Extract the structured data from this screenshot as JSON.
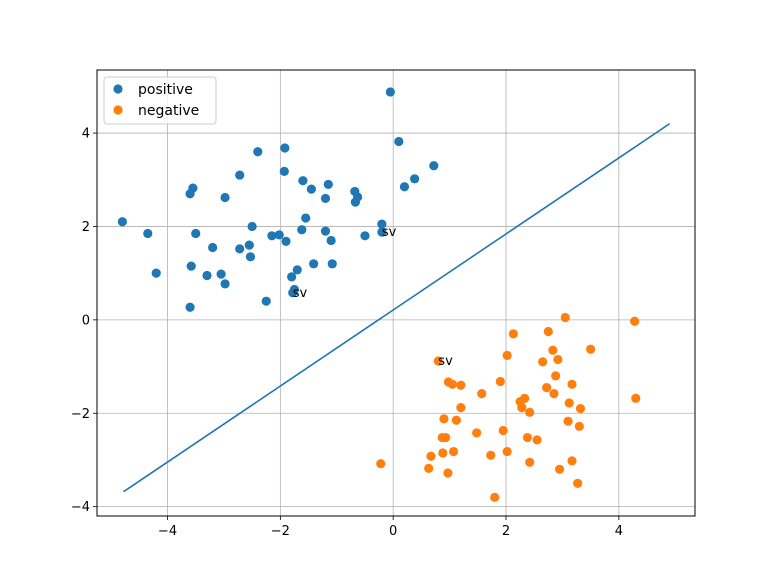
{
  "chart_data": {
    "type": "scatter",
    "title": "",
    "xlabel": "",
    "ylabel": "",
    "xlim": [
      -5.25,
      5.35
    ],
    "ylim": [
      -4.2,
      5.35
    ],
    "xticks": [
      -4,
      -2,
      0,
      2,
      4
    ],
    "yticks": [
      -4,
      -2,
      0,
      2,
      4
    ],
    "grid": true,
    "legend": {
      "position": "top-left"
    },
    "series": [
      {
        "name": "positive",
        "color": "#1f77b4",
        "points": [
          [
            -4.8,
            2.1
          ],
          [
            -4.35,
            1.85
          ],
          [
            -4.2,
            1.0
          ],
          [
            -3.6,
            2.7
          ],
          [
            -3.55,
            2.82
          ],
          [
            -3.5,
            1.85
          ],
          [
            -3.58,
            1.15
          ],
          [
            -3.6,
            0.27
          ],
          [
            -3.3,
            0.95
          ],
          [
            -3.2,
            1.55
          ],
          [
            -3.05,
            0.98
          ],
          [
            -2.98,
            2.62
          ],
          [
            -2.98,
            0.77
          ],
          [
            -2.72,
            3.1
          ],
          [
            -2.72,
            1.52
          ],
          [
            -2.55,
            1.6
          ],
          [
            -2.5,
            2.0
          ],
          [
            -2.53,
            1.35
          ],
          [
            -2.4,
            3.6
          ],
          [
            -2.25,
            0.4
          ],
          [
            -2.15,
            1.8
          ],
          [
            -2.02,
            1.82
          ],
          [
            -1.92,
            3.68
          ],
          [
            -1.93,
            3.18
          ],
          [
            -1.9,
            1.68
          ],
          [
            -1.8,
            0.92
          ],
          [
            -1.78,
            0.58
          ],
          [
            -1.75,
            0.65
          ],
          [
            -1.7,
            1.07
          ],
          [
            -1.62,
            1.93
          ],
          [
            -1.6,
            2.98
          ],
          [
            -1.55,
            2.18
          ],
          [
            -1.45,
            2.8
          ],
          [
            -1.41,
            1.2
          ],
          [
            -1.2,
            2.6
          ],
          [
            -1.2,
            1.9
          ],
          [
            -1.15,
            2.9
          ],
          [
            -1.1,
            1.7
          ],
          [
            -1.08,
            1.2
          ],
          [
            -0.68,
            2.75
          ],
          [
            -0.67,
            2.52
          ],
          [
            -0.63,
            2.63
          ],
          [
            -0.5,
            1.8
          ],
          [
            -0.2,
            2.05
          ],
          [
            -0.2,
            1.88
          ],
          [
            -0.05,
            4.88
          ],
          [
            0.1,
            3.82
          ],
          [
            0.2,
            2.85
          ],
          [
            0.38,
            3.02
          ],
          [
            0.72,
            3.3
          ]
        ]
      },
      {
        "name": "negative",
        "color": "#ff7f0e",
        "points": [
          [
            -0.22,
            -3.08
          ],
          [
            0.63,
            -3.18
          ],
          [
            0.67,
            -2.92
          ],
          [
            0.8,
            -0.88
          ],
          [
            0.87,
            -2.52
          ],
          [
            0.88,
            -2.85
          ],
          [
            0.9,
            -2.12
          ],
          [
            0.93,
            -2.52
          ],
          [
            0.97,
            -3.28
          ],
          [
            0.98,
            -1.33
          ],
          [
            1.05,
            -1.38
          ],
          [
            1.07,
            -2.82
          ],
          [
            1.12,
            -2.15
          ],
          [
            1.2,
            -1.4
          ],
          [
            1.2,
            -1.88
          ],
          [
            1.48,
            -2.42
          ],
          [
            1.57,
            -1.58
          ],
          [
            1.73,
            -2.9
          ],
          [
            1.8,
            -3.8
          ],
          [
            1.9,
            -1.32
          ],
          [
            1.95,
            -2.37
          ],
          [
            2.02,
            -0.76
          ],
          [
            2.02,
            -2.82
          ],
          [
            2.13,
            -0.3
          ],
          [
            2.25,
            -1.75
          ],
          [
            2.28,
            -1.88
          ],
          [
            2.33,
            -1.68
          ],
          [
            2.38,
            -2.52
          ],
          [
            2.42,
            -1.98
          ],
          [
            2.42,
            -3.05
          ],
          [
            2.55,
            -2.57
          ],
          [
            2.65,
            -0.9
          ],
          [
            2.72,
            -1.45
          ],
          [
            2.75,
            -0.25
          ],
          [
            2.83,
            -0.65
          ],
          [
            2.85,
            -1.58
          ],
          [
            2.88,
            -1.2
          ],
          [
            2.92,
            -0.85
          ],
          [
            2.95,
            -3.2
          ],
          [
            3.05,
            0.05
          ],
          [
            3.1,
            -2.17
          ],
          [
            3.12,
            -1.78
          ],
          [
            3.17,
            -1.38
          ],
          [
            3.17,
            -3.02
          ],
          [
            3.27,
            -3.5
          ],
          [
            3.3,
            -2.28
          ],
          [
            3.32,
            -1.9
          ],
          [
            3.5,
            -0.63
          ],
          [
            4.28,
            -0.03
          ],
          [
            4.3,
            -1.68
          ]
        ]
      }
    ],
    "decision_boundary": {
      "color": "#1f77b4",
      "points": [
        [
          -4.78,
          -3.68
        ],
        [
          4.9,
          4.2
        ]
      ]
    },
    "annotations": [
      {
        "text": "sv",
        "x": -0.2,
        "y": 1.88
      },
      {
        "text": "sv",
        "x": -1.78,
        "y": 0.58
      },
      {
        "text": "sv",
        "x": 0.8,
        "y": -0.88
      }
    ]
  }
}
